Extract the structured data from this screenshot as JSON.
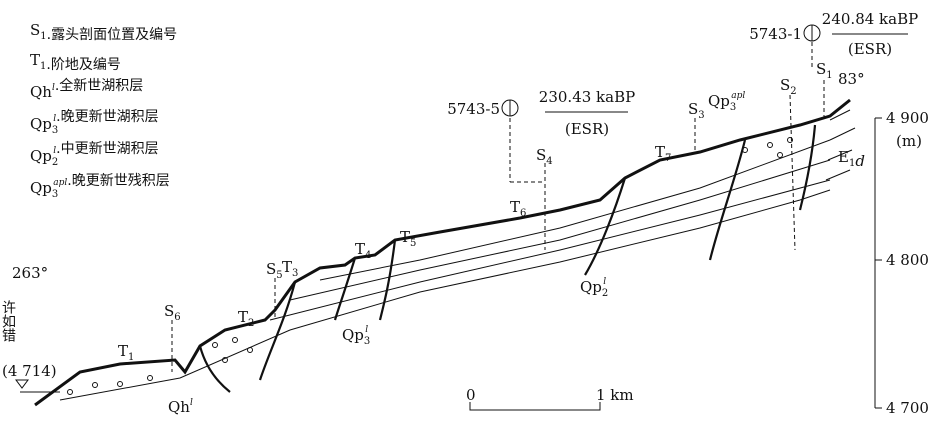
{
  "legend": [
    {
      "symbol": {
        "base": "S",
        "sub": "1"
      },
      "text": ".露头剖面位置及编号"
    },
    {
      "symbol": {
        "base": "T",
        "sub": "1"
      },
      "text": ".阶地及编号"
    },
    {
      "symbol": {
        "base": "Qh",
        "sup": "l"
      },
      "text": ".全新世湖积层"
    },
    {
      "symbol": {
        "base": "Qp",
        "sub": "3",
        "sup": "l"
      },
      "text": ".晚更新世湖积层"
    },
    {
      "symbol": {
        "base": "Qp",
        "sub": "2",
        "sup": "l"
      },
      "text": ".中更新世湖积层"
    },
    {
      "symbol": {
        "base": "Qp",
        "sub": "3",
        "sup": "apl"
      },
      "text": ".晚更新世残积层"
    }
  ],
  "terraces": [
    {
      "base": "T",
      "sub": "1"
    },
    {
      "base": "T",
      "sub": "2"
    },
    {
      "base": "T",
      "sub": "3"
    },
    {
      "base": "T",
      "sub": "4"
    },
    {
      "base": "T",
      "sub": "5"
    },
    {
      "base": "T",
      "sub": "6"
    },
    {
      "base": "T",
      "sub": "7"
    }
  ],
  "sections": [
    {
      "base": "S",
      "sub": "1"
    },
    {
      "base": "S",
      "sub": "2"
    },
    {
      "base": "S",
      "sub": "3"
    },
    {
      "base": "S",
      "sub": "4"
    },
    {
      "base": "S",
      "sub": "5"
    },
    {
      "base": "S",
      "sub": "6"
    }
  ],
  "samples": [
    {
      "id": "5743-1",
      "age": "240.84 kaBP",
      "method": "(ESR)"
    },
    {
      "id": "5743-5",
      "age": "230.43 kaBP",
      "method": "(ESR)"
    }
  ],
  "orientation": {
    "left": "263°",
    "right": "83°"
  },
  "lake": {
    "name": "许如错",
    "elevation": "(4 714)"
  },
  "units": [
    {
      "base": "Qh",
      "sup": "l"
    },
    {
      "base": "Qp",
      "sub": "3",
      "sup": "l"
    },
    {
      "base": "Qp",
      "sub": "2",
      "sup": "l"
    },
    {
      "base": "Qp",
      "sub": "3",
      "sup": "apl"
    },
    {
      "base": "E",
      "sub": "1",
      "tail": "d"
    }
  ],
  "scale": {
    "start": "0",
    "end": "1 km"
  },
  "elevation_axis": {
    "unit": "(m)",
    "ticks": [
      "4 900",
      "4 800",
      "4 700"
    ]
  }
}
